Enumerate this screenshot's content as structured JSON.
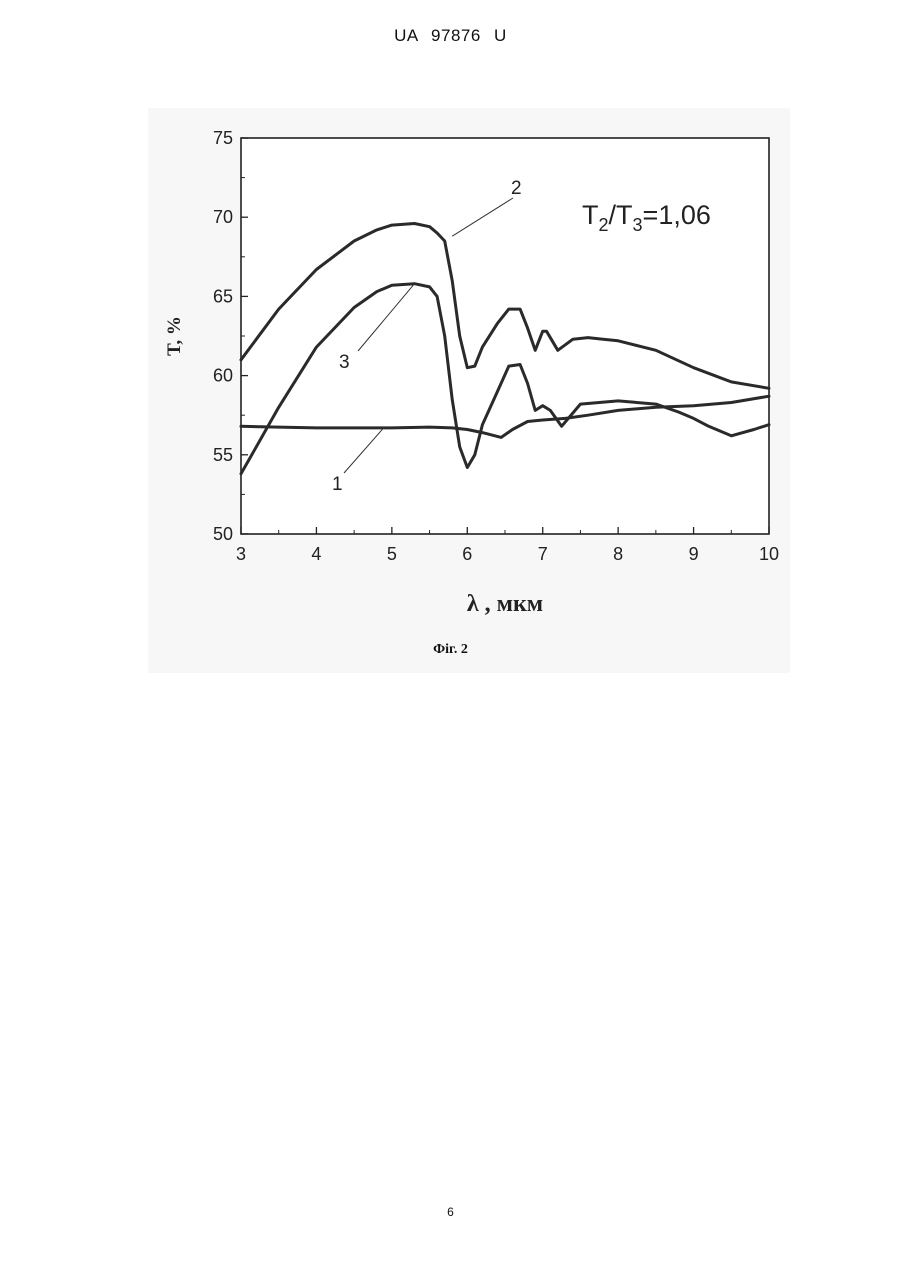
{
  "header": {
    "text": "UA   97876   U"
  },
  "caption": {
    "text": "Фіг. 2"
  },
  "page_number": "6",
  "chart_data": {
    "type": "line",
    "xlabel": "λ , мкм",
    "ylabel": "T, %",
    "xlim": [
      3,
      10
    ],
    "ylim": [
      50,
      75
    ],
    "x_ticks": [
      "3",
      "4",
      "5",
      "6",
      "7",
      "8",
      "9",
      "10"
    ],
    "y_ticks": [
      "50",
      "55",
      "60",
      "65",
      "70",
      "75"
    ],
    "annotation": {
      "T": "T",
      "sub2": "2",
      "slash": "/",
      "sub3": "3",
      "eq": "=1,06"
    },
    "series": [
      {
        "name": "1",
        "x": [
          3.0,
          3.5,
          4.0,
          4.5,
          5.0,
          5.5,
          5.8,
          6.0,
          6.2,
          6.45,
          6.6,
          6.8,
          7.0,
          7.3,
          7.6,
          8.0,
          8.5,
          9.0,
          9.5,
          10.0
        ],
        "y": [
          56.8,
          56.75,
          56.7,
          56.7,
          56.7,
          56.75,
          56.7,
          56.6,
          56.4,
          56.1,
          56.6,
          57.1,
          57.2,
          57.3,
          57.5,
          57.8,
          58.0,
          58.1,
          58.3,
          58.7
        ]
      },
      {
        "name": "2",
        "x": [
          3.0,
          3.5,
          4.0,
          4.5,
          4.8,
          5.0,
          5.3,
          5.5,
          5.6,
          5.7,
          5.8,
          5.9,
          6.0,
          6.1,
          6.2,
          6.4,
          6.55,
          6.7,
          6.8,
          6.9,
          7.0,
          7.05,
          7.2,
          7.4,
          7.6,
          7.8,
          8.0,
          8.5,
          9.0,
          9.5,
          10.0
        ],
        "y": [
          61.0,
          64.2,
          66.7,
          68.5,
          69.2,
          69.5,
          69.6,
          69.4,
          69.0,
          68.5,
          66.0,
          62.5,
          60.5,
          60.6,
          61.8,
          63.3,
          64.2,
          64.2,
          63.0,
          61.6,
          62.8,
          62.8,
          61.6,
          62.3,
          62.4,
          62.3,
          62.2,
          61.6,
          60.5,
          59.6,
          59.2
        ]
      },
      {
        "name": "3",
        "x": [
          3.0,
          3.5,
          4.0,
          4.5,
          4.8,
          5.0,
          5.3,
          5.5,
          5.6,
          5.7,
          5.8,
          5.9,
          6.0,
          6.1,
          6.2,
          6.4,
          6.55,
          6.7,
          6.8,
          6.9,
          7.0,
          7.1,
          7.25,
          7.5,
          8.0,
          8.5,
          8.8,
          9.0,
          9.2,
          9.5,
          9.8,
          10.0
        ],
        "y": [
          53.8,
          58.0,
          61.8,
          64.3,
          65.3,
          65.7,
          65.8,
          65.6,
          65.0,
          62.5,
          58.5,
          55.5,
          54.2,
          55.0,
          56.9,
          59.0,
          60.6,
          60.7,
          59.5,
          57.8,
          58.1,
          57.8,
          56.8,
          58.2,
          58.4,
          58.2,
          57.7,
          57.3,
          56.8,
          56.2,
          56.6,
          56.9
        ]
      }
    ]
  }
}
